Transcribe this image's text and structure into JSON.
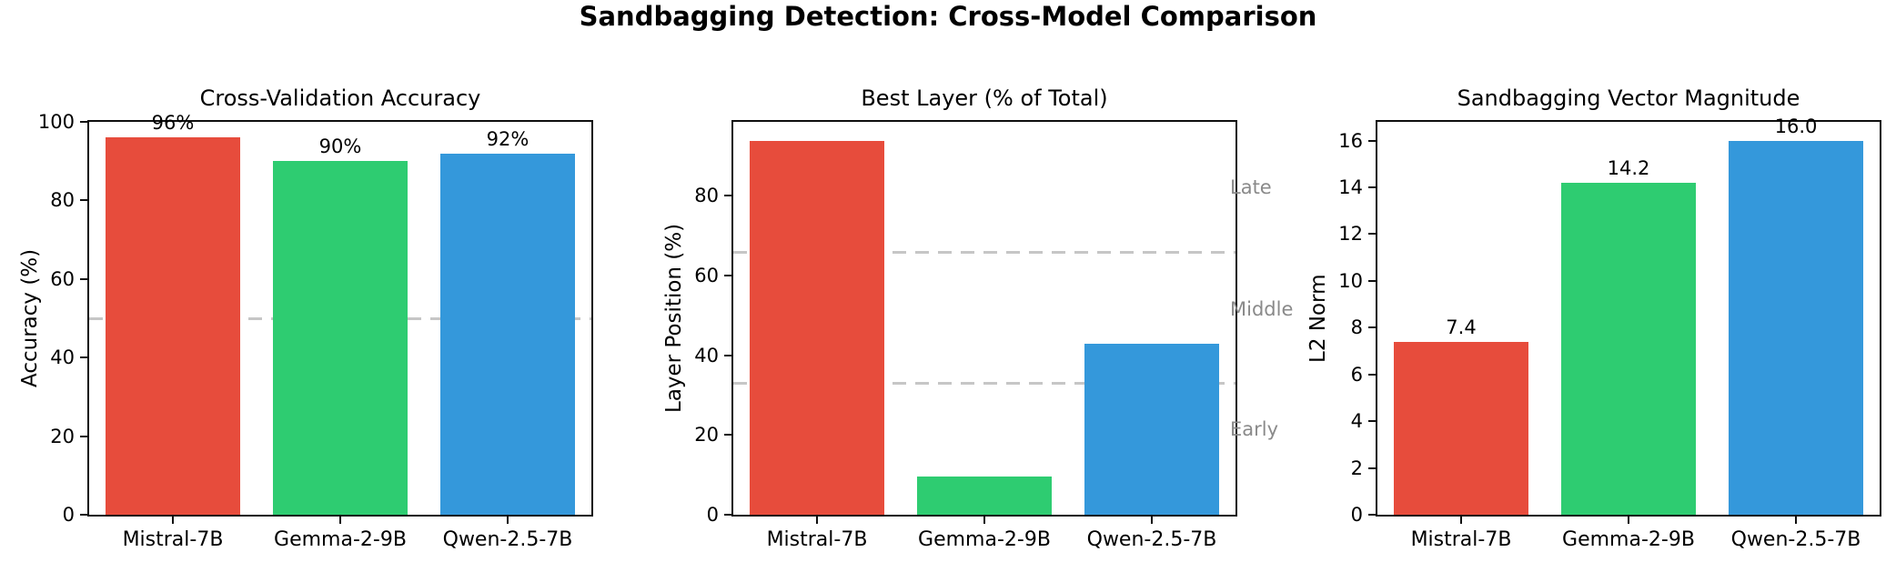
{
  "suptitle": "Sandbagging Detection: Cross-Model Comparison",
  "style": {
    "bar_colors": [
      "#e74c3c",
      "#2ecc71",
      "#3498db"
    ],
    "spine_color": "#0f0f0f",
    "dash_line_color": "#c6c6c6",
    "annotation_color": "#8a8a8a"
  },
  "chart_data": [
    {
      "type": "bar",
      "title": "Cross-Validation Accuracy",
      "ylabel": "Accuracy (%)",
      "categories": [
        "Mistral-7B",
        "Gemma-2-9B",
        "Qwen-2.5-7B"
      ],
      "values": [
        96,
        90,
        92
      ],
      "bar_labels": [
        "96%",
        "90%",
        "92%"
      ],
      "colors": [
        "#e74c3c",
        "#2ecc71",
        "#3498db"
      ],
      "yticks": [
        0,
        20,
        40,
        60,
        80,
        100
      ],
      "ylim": [
        0,
        100
      ],
      "dashed_lines": [
        50
      ],
      "grid": false,
      "legend": null
    },
    {
      "type": "bar",
      "title": "Best Layer (% of Total)",
      "ylabel": "Layer Position (%)",
      "categories": [
        "Mistral-7B",
        "Gemma-2-9B",
        "Qwen-2.5-7B"
      ],
      "values": [
        93.8,
        9.5,
        42.9
      ],
      "bar_labels": [],
      "colors": [
        "#e74c3c",
        "#2ecc71",
        "#3498db"
      ],
      "yticks": [
        0,
        20,
        40,
        60,
        80
      ],
      "ylim": [
        0,
        98.5
      ],
      "dashed_lines": [
        33,
        66
      ],
      "right_annotations": [
        {
          "label": "Late",
          "value": 82
        },
        {
          "label": "Middle",
          "value": 51.5
        },
        {
          "label": "Early",
          "value": 21.5
        }
      ],
      "grid": false,
      "legend": null
    },
    {
      "type": "bar",
      "title": "Sandbagging Vector Magnitude",
      "ylabel": "L2 Norm",
      "categories": [
        "Mistral-7B",
        "Gemma-2-9B",
        "Qwen-2.5-7B"
      ],
      "values": [
        7.4,
        14.2,
        16.0
      ],
      "bar_labels": [
        "7.4",
        "14.2",
        "16.0"
      ],
      "colors": [
        "#e74c3c",
        "#2ecc71",
        "#3498db"
      ],
      "yticks": [
        0,
        2,
        4,
        6,
        8,
        10,
        12,
        14,
        16
      ],
      "ylim": [
        0,
        16.8
      ],
      "dashed_lines": [],
      "grid": false,
      "legend": null
    }
  ]
}
